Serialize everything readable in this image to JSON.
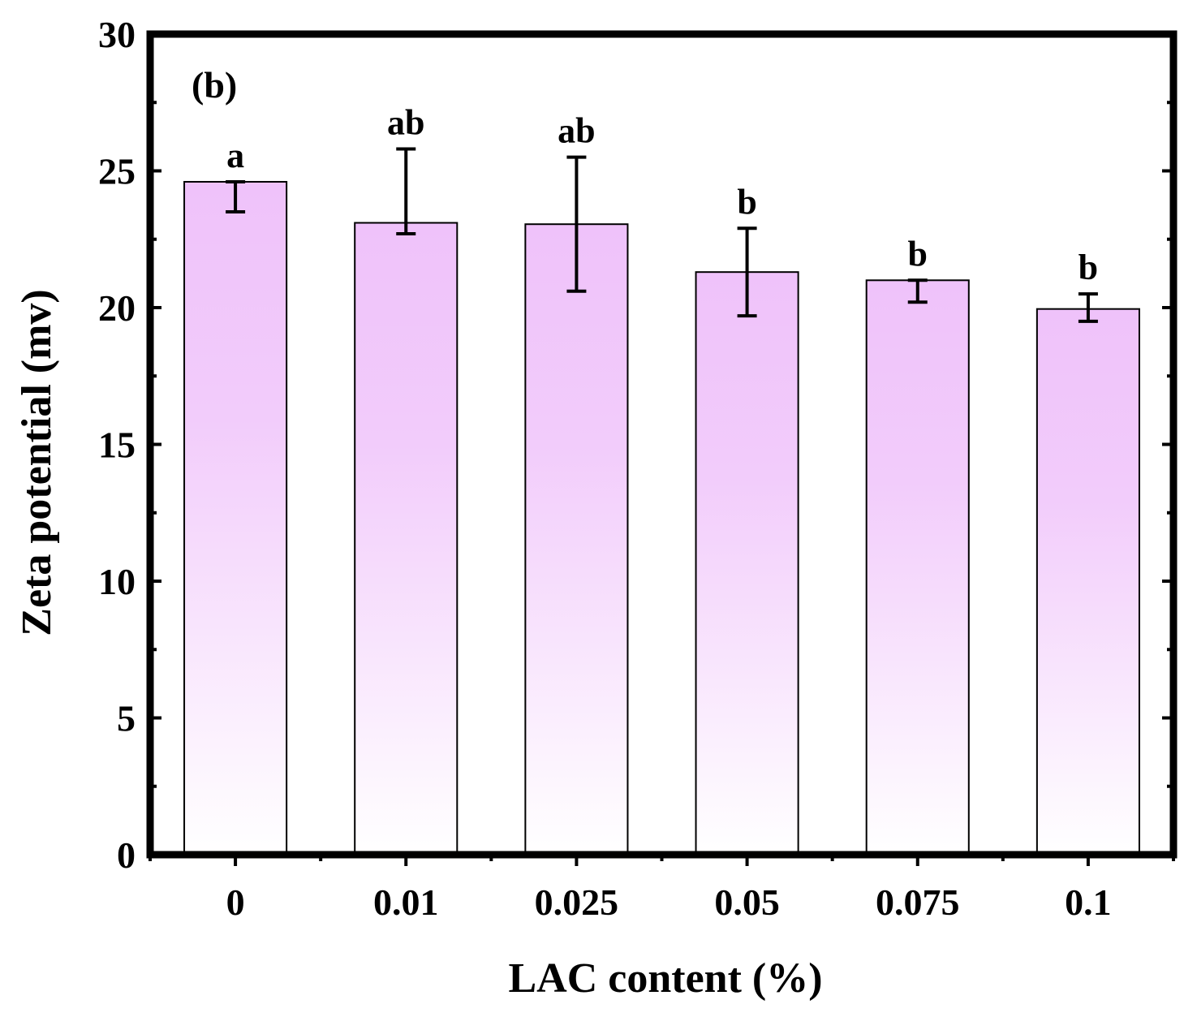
{
  "chart_data": {
    "type": "bar",
    "panel_label": "(b)",
    "xlabel": "LAC content (%)",
    "ylabel": "Zeta potential (mv)",
    "ylim": [
      0,
      30
    ],
    "yticks": [
      "0",
      "5",
      "10",
      "15",
      "20",
      "25",
      "30"
    ],
    "categories": [
      "0",
      "0.01",
      "0.025",
      "0.05",
      "0.075",
      "0.1"
    ],
    "values": [
      24.6,
      23.1,
      23.05,
      21.3,
      21.0,
      19.95
    ],
    "error_upper": [
      24.6,
      25.8,
      25.5,
      22.9,
      21.0,
      20.5
    ],
    "error_lower": [
      23.5,
      22.7,
      20.6,
      19.7,
      20.2,
      19.5
    ],
    "significance": [
      "a",
      "ab",
      "ab",
      "b",
      "b",
      "b"
    ],
    "colors": {
      "bar_top": "#EFC2FA",
      "bar_bottom": "#FFFFFF",
      "axis": "#000000"
    }
  }
}
